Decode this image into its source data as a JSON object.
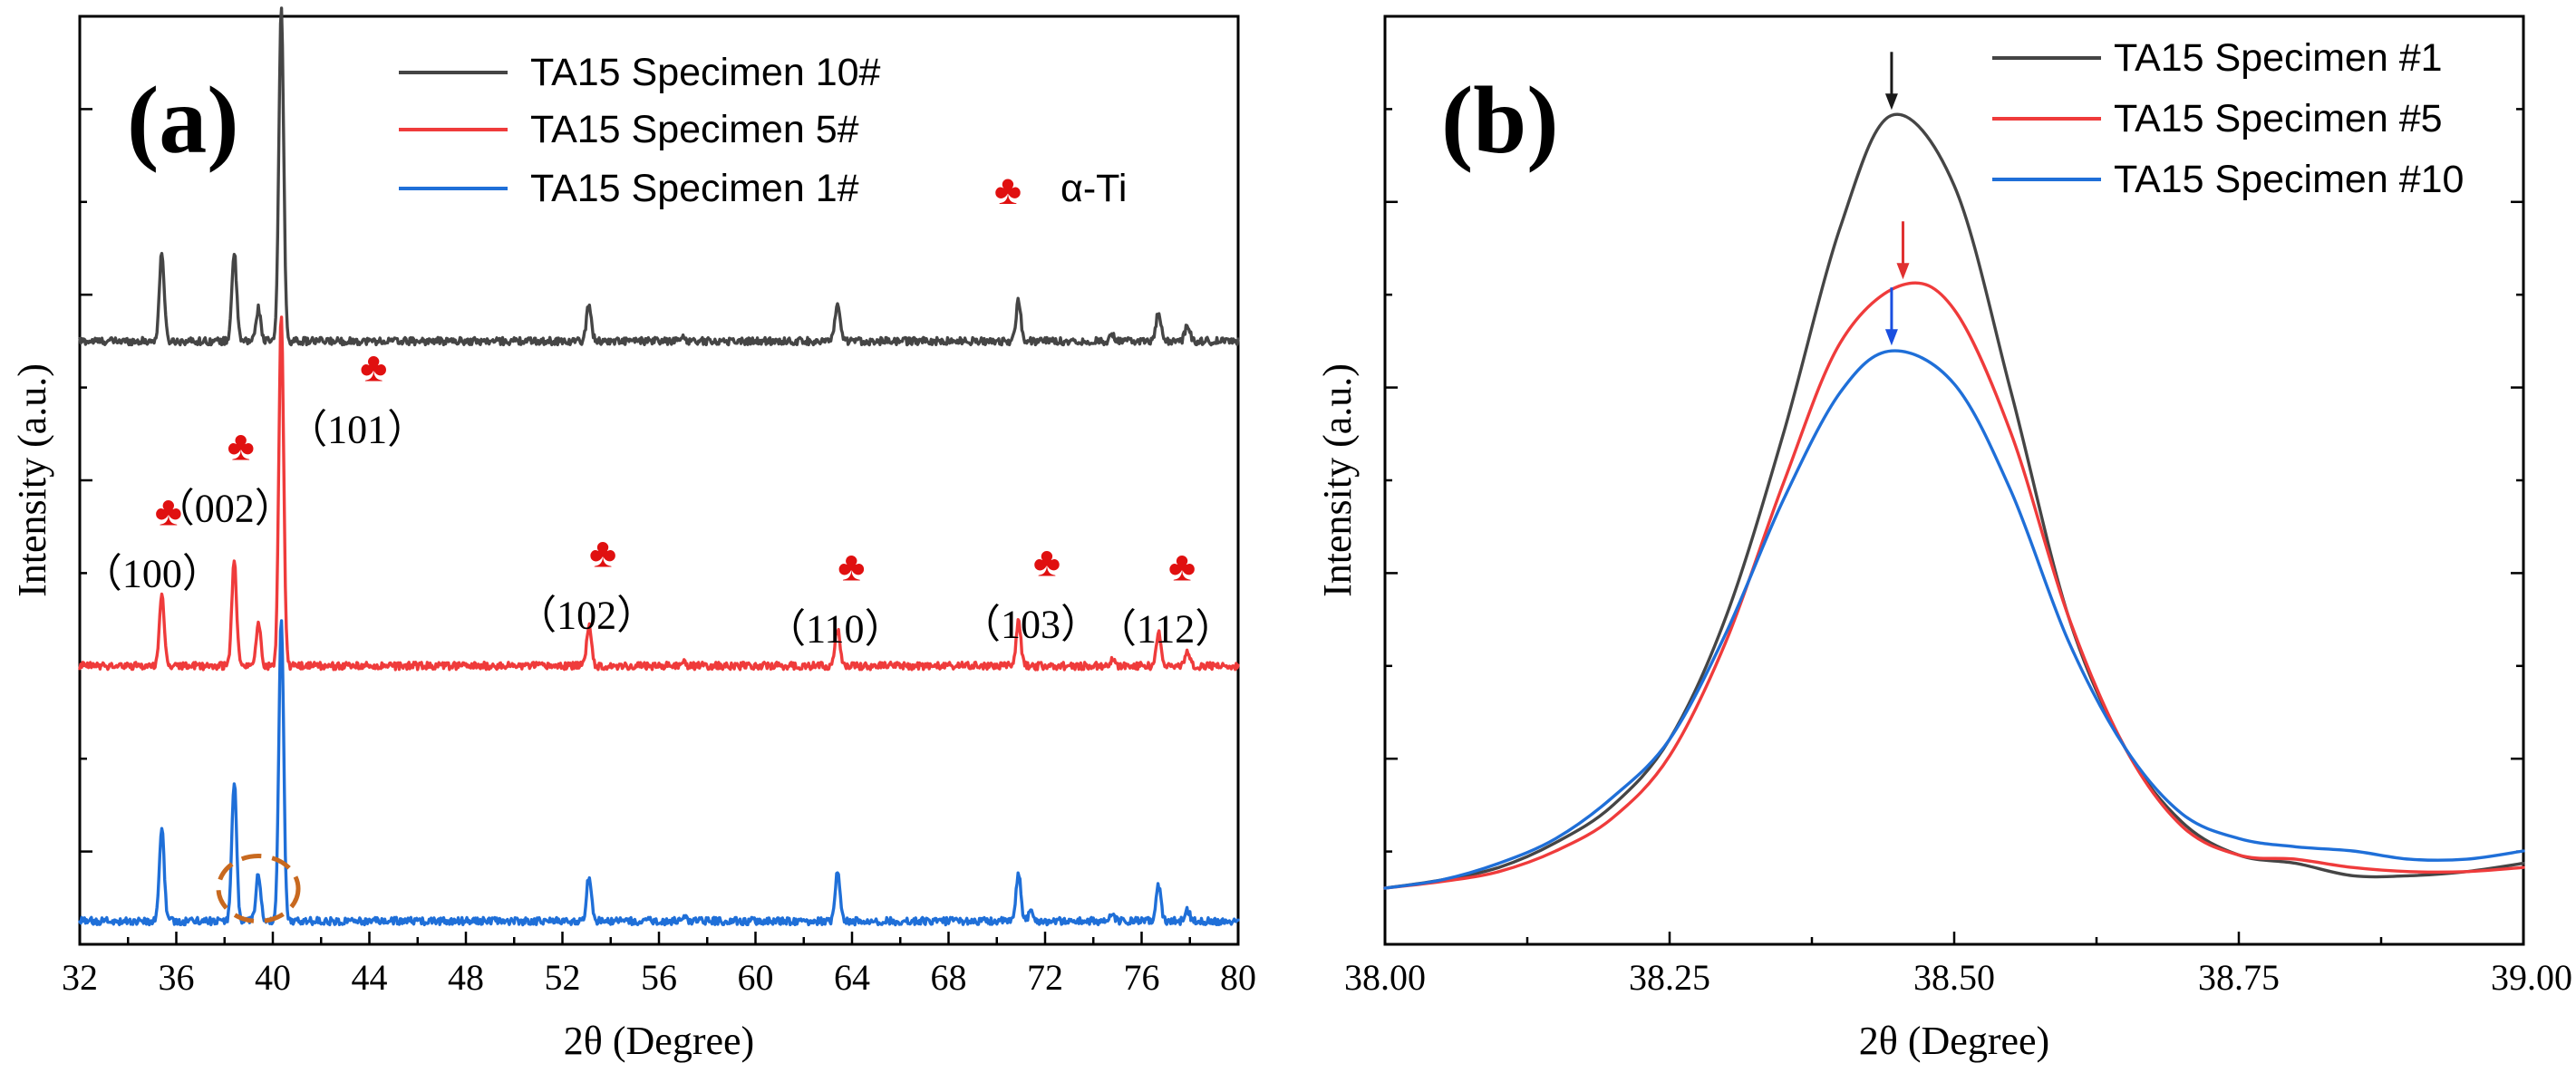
{
  "colors": {
    "black": "#454545",
    "red": "#ef3b3b",
    "blue": "#1f6fd8",
    "marker": "#e01010",
    "circle": "#c8691f",
    "darrow": "#1a1a1a",
    "barrow": "#1a4fe0"
  },
  "chart_data": [
    {
      "id": "a",
      "type": "line",
      "panel_label": "(a)",
      "xlabel": "2θ (Degree)",
      "ylabel": "Intensity (a.u.)",
      "xlim": [
        32,
        80
      ],
      "xticks": [
        "32",
        "36",
        "40",
        "44",
        "48",
        "52",
        "56",
        "60",
        "64",
        "68",
        "72",
        "76",
        "80"
      ],
      "ylim": [
        0,
        100
      ],
      "grid": false,
      "legend": {
        "position": "top-right"
      },
      "series": [
        {
          "name": "TA15 Specimen 10#",
          "color": "#454545",
          "baseline": 65,
          "peaks": [
            [
              35.4,
              9.5
            ],
            [
              38.4,
              9.5
            ],
            [
              39.4,
              3.5
            ],
            [
              40.35,
              36
            ],
            [
              53.1,
              4
            ],
            [
              57.0,
              0.5
            ],
            [
              63.4,
              4
            ],
            [
              70.9,
              4.3
            ],
            [
              74.8,
              0.6
            ],
            [
              76.7,
              3
            ],
            [
              77.9,
              1.8
            ]
          ]
        },
        {
          "name": "TA15 Specimen 5#",
          "color": "#ef3b3b",
          "baseline": 30,
          "peaks": [
            [
              35.4,
              7.8
            ],
            [
              38.4,
              11.2
            ],
            [
              39.4,
              4.5
            ],
            [
              40.35,
              38
            ],
            [
              53.1,
              4.5
            ],
            [
              57.0,
              0.5
            ],
            [
              63.4,
              4
            ],
            [
              70.9,
              4.7
            ],
            [
              74.8,
              0.6
            ],
            [
              76.7,
              3.5
            ],
            [
              77.9,
              1.5
            ]
          ]
        },
        {
          "name": "TA15 Specimen 1#",
          "color": "#1f6fd8",
          "baseline": 2.5,
          "peaks": [
            [
              35.4,
              10
            ],
            [
              38.4,
              15
            ],
            [
              39.4,
              5
            ],
            [
              40.35,
              32.5
            ],
            [
              53.1,
              4.8
            ],
            [
              57.0,
              0.5
            ],
            [
              63.4,
              5.2
            ],
            [
              70.9,
              5.2
            ],
            [
              71.4,
              1
            ],
            [
              74.8,
              0.6
            ],
            [
              76.7,
              3.8
            ],
            [
              77.9,
              1.2
            ]
          ]
        }
      ],
      "phase_marker": {
        "symbol": "♣",
        "label": "α-Ti"
      },
      "peak_annotations": [
        {
          "hkl": "（101）",
          "x": 43.5,
          "y": 56
        },
        {
          "hkl": "（002）",
          "x": 38.0,
          "y": 47.5
        },
        {
          "hkl": "（100）",
          "x": 35.0,
          "y": 40.5
        },
        {
          "hkl": "（102）",
          "x": 53.0,
          "y": 36
        },
        {
          "hkl": "（110）",
          "x": 63.3,
          "y": 34.5
        },
        {
          "hkl": "（103）",
          "x": 71.4,
          "y": 35
        },
        {
          "hkl": "（112）",
          "x": 77.0,
          "y": 34.5
        }
      ],
      "highlight_circle": {
        "x": 39.4,
        "y": 6
      }
    },
    {
      "id": "b",
      "type": "line",
      "panel_label": "(b)",
      "xlabel": "2θ (Degree)",
      "ylabel": "Intensity (a.u.)",
      "xlim": [
        38.0,
        39.0
      ],
      "xticks": [
        "38.00",
        "38.25",
        "38.50",
        "38.75",
        "39.00"
      ],
      "ylim": [
        0,
        100
      ],
      "grid": false,
      "legend": {
        "position": "top-right"
      },
      "series": [
        {
          "name": "TA15 Specimen #1",
          "color": "#454545",
          "peak_x": 38.445,
          "peak": 93.5,
          "arrow_color": "#1a1a1a",
          "points": [
            [
              38.0,
              0
            ],
            [
              38.05,
              1
            ],
            [
              38.1,
              2.5
            ],
            [
              38.15,
              5.5
            ],
            [
              38.2,
              10
            ],
            [
              38.25,
              18
            ],
            [
              38.3,
              33
            ],
            [
              38.35,
              55
            ],
            [
              38.4,
              80
            ],
            [
              38.445,
              93.5
            ],
            [
              38.5,
              85
            ],
            [
              38.55,
              60
            ],
            [
              38.6,
              33
            ],
            [
              38.65,
              17
            ],
            [
              38.7,
              8
            ],
            [
              38.75,
              4
            ],
            [
              38.8,
              3
            ],
            [
              38.85,
              1.5
            ],
            [
              38.9,
              1.5
            ],
            [
              38.95,
              2
            ],
            [
              39.0,
              3
            ]
          ]
        },
        {
          "name": "TA15 Specimen #5",
          "color": "#ef3b3b",
          "peak_x": 38.455,
          "peak": 73,
          "arrow_color": "#e03030",
          "points": [
            [
              38.0,
              0
            ],
            [
              38.05,
              0.8
            ],
            [
              38.1,
              2
            ],
            [
              38.15,
              4.5
            ],
            [
              38.2,
              8.5
            ],
            [
              38.25,
              16
            ],
            [
              38.3,
              30
            ],
            [
              38.35,
              49
            ],
            [
              38.4,
              66
            ],
            [
              38.455,
              73
            ],
            [
              38.5,
              70
            ],
            [
              38.55,
              55
            ],
            [
              38.6,
              33
            ],
            [
              38.65,
              17
            ],
            [
              38.7,
              7.5
            ],
            [
              38.75,
              4
            ],
            [
              38.8,
              3.5
            ],
            [
              38.85,
              2.5
            ],
            [
              38.9,
              2
            ],
            [
              38.95,
              2
            ],
            [
              39.0,
              2.5
            ]
          ]
        },
        {
          "name": "TA15 Specimen #10",
          "color": "#1f6fd8",
          "peak_x": 38.445,
          "peak": 65,
          "arrow_color": "#1a4fe0",
          "points": [
            [
              38.0,
              0
            ],
            [
              38.05,
              1
            ],
            [
              38.1,
              3
            ],
            [
              38.15,
              6
            ],
            [
              38.2,
              11
            ],
            [
              38.25,
              18
            ],
            [
              38.3,
              31
            ],
            [
              38.35,
              47
            ],
            [
              38.4,
              60
            ],
            [
              38.445,
              65
            ],
            [
              38.5,
              61
            ],
            [
              38.55,
              48
            ],
            [
              38.6,
              30
            ],
            [
              38.65,
              17
            ],
            [
              38.7,
              9
            ],
            [
              38.75,
              6
            ],
            [
              38.8,
              5
            ],
            [
              38.85,
              4.5
            ],
            [
              38.9,
              3.5
            ],
            [
              38.95,
              3.5
            ],
            [
              39.0,
              4.5
            ]
          ]
        }
      ]
    }
  ]
}
